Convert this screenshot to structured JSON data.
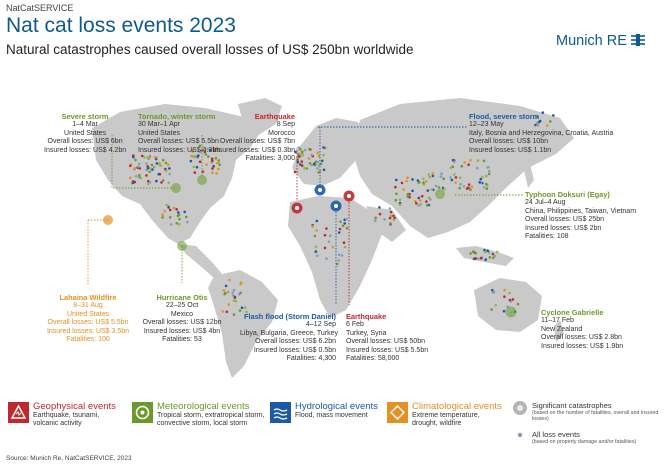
{
  "header": {
    "service": "NatCatSERVICE",
    "title": "Nat cat loss events 2023",
    "subtitle": "Natural catastrophes caused overall losses of US$ 250bn worldwide",
    "logo_text": "Munich RE"
  },
  "events": {
    "severe_storm": {
      "name": "Severe storm",
      "date": "1–4 Mar",
      "place": "United States",
      "overall": "Overall losses: US$ 6bn",
      "insured": "Insured losses: US$ 4.2bn"
    },
    "tornado": {
      "name": "Tornado, winter storm",
      "date": "30 Mar–1 Apr",
      "place": "United States",
      "overall": "Overall losses: US$ 5.5bn",
      "insured": "Insured losses: US$ 4.3bn"
    },
    "eq_morocco": {
      "name": "Earthquake",
      "date": "8 Sep",
      "place": "Morocco",
      "overall": "Overall losses: US$ 7bn",
      "insured": "Insured losses: US$ 0.3bn",
      "fatalities": "Fatalities: 3,000"
    },
    "flood_italy": {
      "name": "Flood, severe storm",
      "date": "12–23 May",
      "place": "Italy, Bosnia and Herzegovina, Croatia, Austria",
      "overall": "Overall losses: US$ 10bn",
      "insured": "Insured losses: US$ 1.1bn"
    },
    "typhoon": {
      "name": "Typhoon Doksuri (Egay)",
      "date": "24 Jul–4 Aug",
      "place": "China, Philippines, Taiwan, Vietnam",
      "overall": "Overall losses: US$ 25bn",
      "insured": "Insured losses: US$ 2bn",
      "fatalities": "Fatalities: 108"
    },
    "lahaina": {
      "name": "Lahaina Wildfire",
      "date": "8–31 Aug",
      "place": "United States",
      "overall": "Overall losses: US$ 5.5bn",
      "insured": "Insured losses: US$ 3.5bn",
      "fatalities": "Fatalities: 100"
    },
    "otis": {
      "name": "Hurricane Otis",
      "date": "22–25 Oct",
      "place": "Mexico",
      "overall": "Overall losses: US$ 12bn",
      "insured": "Insured losses: US$ 4bn",
      "fatalities": "Fatalities: 53"
    },
    "daniel": {
      "name": "Flash flood (Storm Daniel)",
      "date": "4–12 Sep",
      "place": "Libya, Bulgaria, Greece, Turkey",
      "overall": "Overall losses: US$ 6.2bn",
      "insured": "Insured losses: US$ 0.5bn",
      "fatalities": "Fatalities: 4,300"
    },
    "eq_turkey": {
      "name": "Earthquake",
      "date": "6 Feb",
      "place": "Turkey, Syria",
      "overall": "Overall losses: US$ 50bn",
      "insured": "Insured losses: US$ 5.5bn",
      "fatalities": "Fatalities: 58,000"
    },
    "gabrielle": {
      "name": "Cyclone Gabrielle",
      "date": "11–17 Feb",
      "place": "New Zealand",
      "overall": "Overall losses: US$ 2.8bn",
      "insured": "Insured losses: US$ 1.9bn"
    }
  },
  "legend": {
    "geo": {
      "title": "Geophysical events",
      "desc1": "Earthquake, tsunami,",
      "desc2": "volcanic activity",
      "color": "#c0282e"
    },
    "met": {
      "title": "Meteorological events",
      "desc1": "Tropical storm, extratropical storm,",
      "desc2": "convective storm, local storm",
      "color": "#6b9a2c"
    },
    "hyd": {
      "title": "Hydrological events",
      "desc1": "Flood, mass movement",
      "desc2": "",
      "color": "#1d5aa6"
    },
    "cli": {
      "title": "Climatological events",
      "desc1": "Extreme temperature,",
      "desc2": "drought, wildfire",
      "color": "#e39024"
    },
    "sig": {
      "title": "Significant catastrophes",
      "desc": "(based on the number of fatalities, overall and insured losses)"
    },
    "all": {
      "title": "All loss events",
      "desc": "(based on property damage and/or fatalities)"
    }
  },
  "source": "Source: Munich Re, NatCatSERVICE, 2023"
}
